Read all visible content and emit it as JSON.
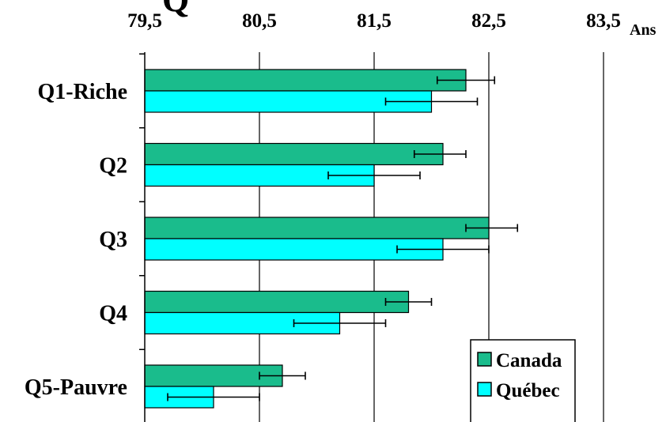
{
  "chart_data": {
    "type": "bar",
    "orientation": "horizontal",
    "title": "",
    "categories": [
      "Q1-Riche",
      "Q2",
      "Q3",
      "Q4",
      "Q5-Pauvre"
    ],
    "series": [
      {
        "name": "Canada",
        "values": [
          82.3,
          82.1,
          82.5,
          81.8,
          80.7
        ],
        "error_low": [
          82.05,
          81.85,
          82.3,
          81.6,
          80.5
        ],
        "error_high": [
          82.55,
          82.3,
          82.75,
          82.0,
          80.9
        ]
      },
      {
        "name": "Québec",
        "values": [
          82.0,
          81.5,
          82.1,
          81.2,
          80.1
        ],
        "error_low": [
          81.6,
          81.1,
          81.7,
          80.8,
          79.7
        ],
        "error_high": [
          82.4,
          81.9,
          82.5,
          81.6,
          80.5
        ]
      }
    ],
    "xlim": [
      79.5,
      83.5
    ],
    "xticks": [
      "79,5",
      "80,5",
      "81,5",
      "82,5",
      "83,5"
    ],
    "xticks_values": [
      79.5,
      80.5,
      81.5,
      82.5,
      83.5
    ],
    "x_unit": "Ans",
    "xaxis_position": "top",
    "grid": "vertical",
    "legend_position": "bottom-right",
    "colors": {
      "Canada": "#1ABC8C",
      "Québec": "#00FFFF"
    }
  }
}
